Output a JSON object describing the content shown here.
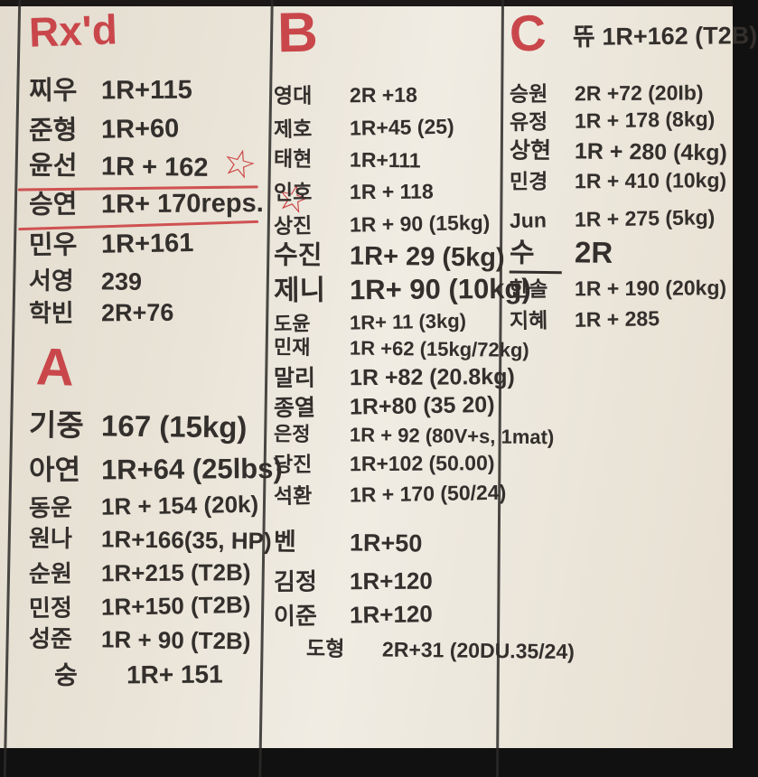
{
  "board": {
    "marker_red": "#c9474b",
    "marker_black": "#332f2c",
    "icons": {
      "star": "☆"
    },
    "columns": [
      {
        "blocks": [
          {
            "header": "Rx'd",
            "entries": [
              {
                "name": "찌우",
                "score": "1R+115"
              },
              {
                "name": "준형",
                "score": "1R+60"
              },
              {
                "name": "윤선",
                "score": "1R + 162"
              },
              {
                "name": "승연",
                "score": "1R+ 170reps."
              },
              {
                "name": "민우",
                "score": "1R+161"
              },
              {
                "name": "서영",
                "score": "239"
              },
              {
                "name": "학빈",
                "score": "2R+76"
              }
            ]
          },
          {
            "header": "A",
            "entries": [
              {
                "name": "기중",
                "score": "167 (15kg)"
              },
              {
                "name": "아연",
                "score": "1R+64 (25lbs)"
              },
              {
                "name": "동운",
                "score": "1R + 154 (20k)"
              },
              {
                "name": "원나",
                "score": "1R+166(35, HP)"
              },
              {
                "name": "순원",
                "score": "1R+215 (T2B)"
              },
              {
                "name": "민정",
                "score": "1R+150 (T2B)"
              },
              {
                "name": "성준",
                "score": "1R + 90 (T2B)"
              },
              {
                "name": "숭",
                "score": "1R+ 151"
              }
            ]
          }
        ]
      },
      {
        "blocks": [
          {
            "header": "B",
            "entries": [
              {
                "name": "영대",
                "score": "2R +18"
              },
              {
                "name": "제호",
                "score": "1R+45 (25)"
              },
              {
                "name": "태현",
                "score": "1R+111"
              },
              {
                "name": "인호",
                "score": "1R + 118"
              },
              {
                "name": "상진",
                "score": "1R + 90 (15kg)"
              },
              {
                "name": "수진",
                "score": "1R+ 29 (5kg)"
              },
              {
                "name": "제니",
                "score": "1R+ 90 (10kg)"
              },
              {
                "name": "도윤",
                "score": "1R+ 11 (3kg)"
              },
              {
                "name": "민재",
                "score": "1R +62 (15kg/72kg)"
              },
              {
                "name": "말리",
                "score": "1R +82 (20.8kg)"
              },
              {
                "name": "종열",
                "score": "1R+80 (35 20)"
              },
              {
                "name": "은정",
                "score": "1R + 92 (80V+s, 1mat)"
              },
              {
                "name": "당진",
                "score": "1R+102 (50.00)"
              },
              {
                "name": "석환",
                "score": "1R + 170 (50/24)"
              },
              {
                "name": "벤",
                "score": "1R+50"
              },
              {
                "name": "김정",
                "score": "1R+120"
              },
              {
                "name": "이준",
                "score": "1R+120"
              },
              {
                "name": "도형",
                "score": "2R+31 (20DU.35/24)"
              }
            ]
          }
        ]
      },
      {
        "blocks": [
          {
            "header": "C",
            "header_note": "뜌 1R+162 (T2B)",
            "entries": [
              {
                "name": "승원",
                "score": "2R +72 (20Ib)"
              },
              {
                "name": "유정",
                "score": "1R + 178 (8kg)"
              },
              {
                "name": "상현",
                "score": "1R + 280 (4kg)"
              },
              {
                "name": "민경",
                "score": "1R + 410 (10kg)"
              },
              {
                "name": "Jun",
                "score": "1R + 275 (5kg)"
              },
              {
                "name": "수",
                "score": "2R"
              },
              {
                "name": "한솔",
                "score": "1R + 190 (20kg)"
              },
              {
                "name": "지혜",
                "score": "1R + 285"
              }
            ]
          }
        ]
      }
    ]
  }
}
